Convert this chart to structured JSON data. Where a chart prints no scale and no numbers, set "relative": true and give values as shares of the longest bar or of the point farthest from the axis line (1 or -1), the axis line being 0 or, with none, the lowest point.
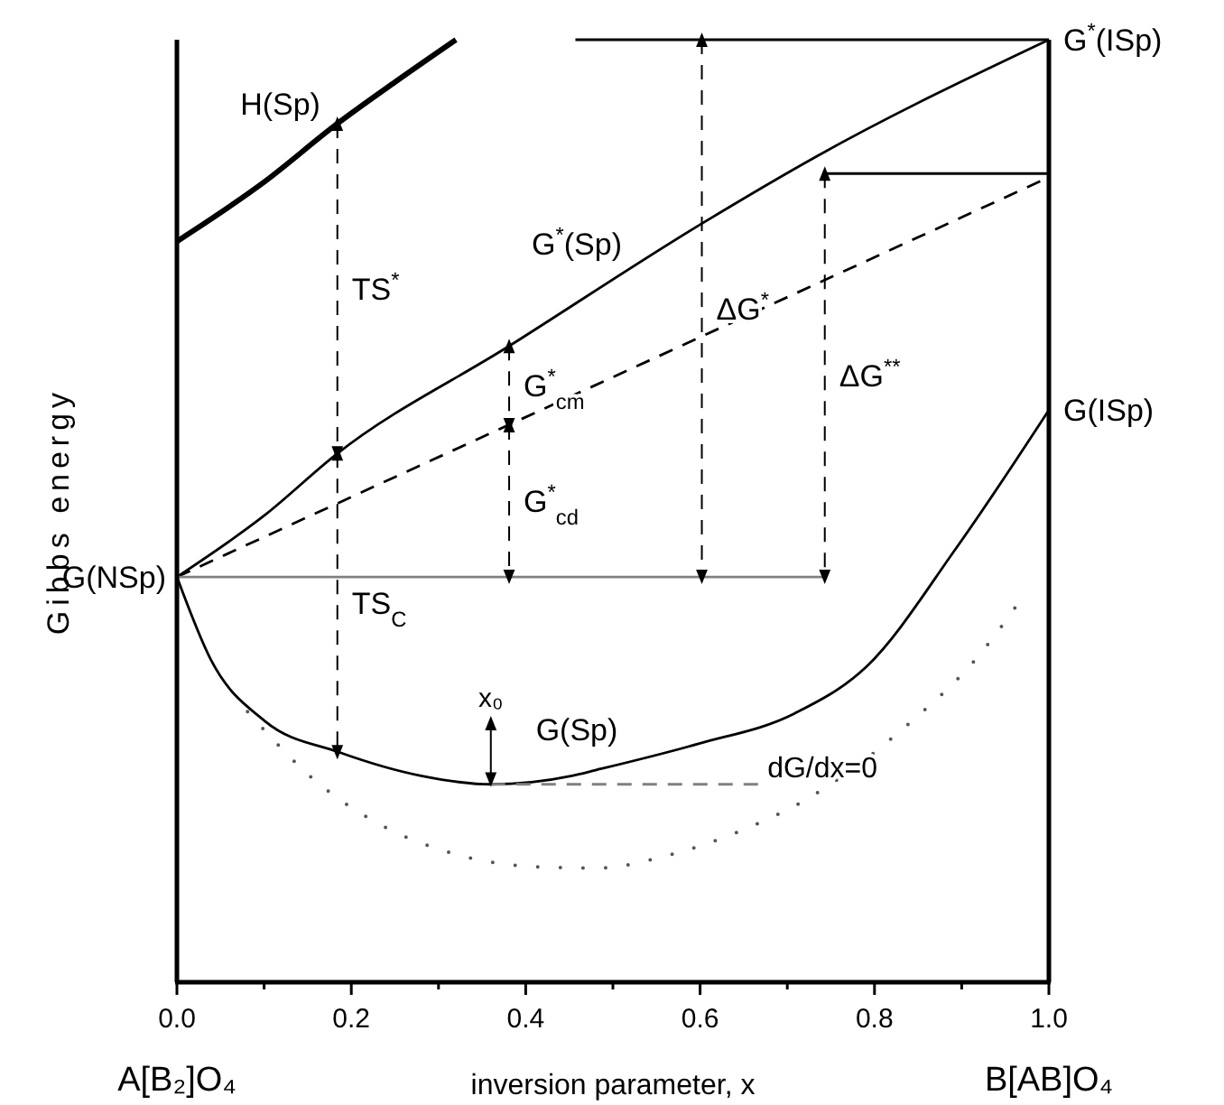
{
  "chart_data": {
    "type": "line",
    "relative": true,
    "xlabel": "inversion parameter, x",
    "ylabel": "Gibbs energy",
    "xlim": [
      0,
      1
    ],
    "xticks": [
      {
        "value": 0,
        "label": "0.0"
      },
      {
        "value": 0.1,
        "label": null
      },
      {
        "value": 0.2,
        "label": "0.2"
      },
      {
        "value": 0.3,
        "label": null
      },
      {
        "value": 0.4,
        "label": "0.4"
      },
      {
        "value": 0.5,
        "label": null
      },
      {
        "value": 0.6,
        "label": "0.6"
      },
      {
        "value": 0.7,
        "label": null
      },
      {
        "value": 0.8,
        "label": "0.8"
      },
      {
        "value": 0.9,
        "label": null
      },
      {
        "value": 1,
        "label": "1.0"
      }
    ],
    "series": [
      {
        "name": "H(Sp)",
        "color": "#000000",
        "x": [
          0,
          0.1,
          0.184,
          0.25,
          0.32
        ],
        "values": [
          0.786,
          0.849,
          0.911,
          0.955,
          1.0
        ]
      },
      {
        "name": "G$^{*}$(Sp)",
        "color": "#000000",
        "x": [
          0,
          0.1,
          0.184,
          0.381,
          0.602,
          0.735,
          1.0
        ],
        "values": [
          0.43,
          0.495,
          0.561,
          0.675,
          0.805,
          0.877,
          1.0
        ]
      },
      {
        "color": "#000000",
        "line_style": "dashed",
        "x": [
          0,
          1
        ],
        "values": [
          0.43,
          0.854
        ]
      },
      {
        "name": "G(Sp)",
        "color": "#000000",
        "x": [
          0,
          0.039,
          0.101,
          0.186,
          0.28,
          0.36,
          0.453,
          0.48,
          0.598,
          0.708,
          0.791,
          0.894,
          1.0
        ],
        "values": [
          0.43,
          0.342,
          0.277,
          0.244,
          0.219,
          0.21,
          0.219,
          0.225,
          0.253,
          0.285,
          0.335,
          0.461,
          0.607
        ]
      },
      {
        "color": "#555555",
        "line_style": "dotted",
        "x": [
          0.081,
          0.161,
          0.24,
          0.319,
          0.402,
          0.48,
          0.561,
          0.642,
          0.72,
          0.839,
          0.921,
          0.961
        ],
        "values": [
          0.287,
          0.212,
          0.164,
          0.136,
          0.123,
          0.121,
          0.134,
          0.159,
          0.193,
          0.274,
          0.348,
          0.397
        ]
      },
      {
        "name": "G(NSp)",
        "color": "#808080",
        "x": [
          0,
          0.743
        ],
        "values": [
          0.43,
          0.43
        ]
      },
      {
        "name": "G$^{*}$(ISp)",
        "color": "#000000",
        "x": [
          0.457,
          1.0
        ],
        "values": [
          1.0,
          1.0
        ]
      },
      {
        "color": "#000000",
        "x": [
          0.743,
          1.0
        ],
        "values": [
          0.858,
          0.858
        ]
      },
      {
        "name": "dG/dx=0",
        "color": "#808080",
        "line_style": "dashed",
        "x": [
          0.36,
          0.671
        ],
        "values": [
          0.21,
          0.21
        ]
      },
      {
        "name": "TS$^{*}$",
        "color": "#000000",
        "line_style": "dashed",
        "marker": "triangle",
        "x": [
          0.184,
          0.184
        ],
        "values": [
          0.911,
          0.561
        ]
      },
      {
        "name": "TS$_{C}$",
        "color": "#000000",
        "line_style": "dashed",
        "marker": "triangle",
        "x": [
          0.184,
          0.184
        ],
        "values": [
          0.561,
          0.244
        ]
      },
      {
        "name": "G$^{*}$$_{cm}$",
        "color": "#000000",
        "line_style": "dashed",
        "marker": "triangle",
        "x": [
          0.381,
          0.381
        ],
        "values": [
          0.675,
          0.591
        ]
      },
      {
        "name": "G$^{*}$$_{cd}$",
        "color": "#000000",
        "line_style": "dashed",
        "marker": "triangle",
        "x": [
          0.381,
          0.381
        ],
        "values": [
          0.591,
          0.43
        ]
      },
      {
        "name": "ΔG$^{*}$",
        "color": "#000000",
        "line_style": "dashed",
        "marker": "triangle",
        "x": [
          0.602,
          0.602
        ],
        "values": [
          1.0,
          0.43
        ]
      },
      {
        "name": "ΔG$^{**}$",
        "color": "#000000",
        "line_style": "dashed",
        "marker": "triangle",
        "x": [
          0.743,
          0.743
        ],
        "values": [
          0.858,
          0.43
        ]
      },
      {
        "name": "x₀",
        "color": "#000000",
        "marker": "triangle",
        "x": [
          0.36,
          0.36
        ],
        "values": [
          0.275,
          0.215
        ]
      }
    ],
    "annotations": [
      {
        "text": "G(ISp)",
        "x": 1.0,
        "y": 0.607
      },
      "A[B₂]O₄",
      "B[AB]O₄"
    ]
  }
}
